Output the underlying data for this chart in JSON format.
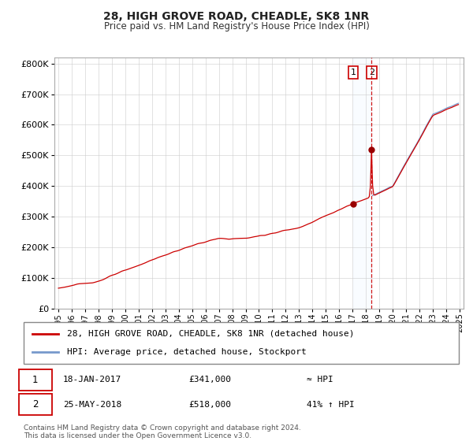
{
  "title": "28, HIGH GROVE ROAD, CHEADLE, SK8 1NR",
  "subtitle": "Price paid vs. HM Land Registry's House Price Index (HPI)",
  "ylim": [
    0,
    820000
  ],
  "yticks": [
    0,
    100000,
    200000,
    300000,
    400000,
    500000,
    600000,
    700000,
    800000
  ],
  "ytick_labels": [
    "£0",
    "£100K",
    "£200K",
    "£300K",
    "£400K",
    "£500K",
    "£600K",
    "£700K",
    "£800K"
  ],
  "line1_color": "#cc0000",
  "line2_color": "#7799cc",
  "marker_color": "#990000",
  "vline_color": "#cc0000",
  "shade_color": "#ddeeff",
  "legend_label1": "28, HIGH GROVE ROAD, CHEADLE, SK8 1NR (detached house)",
  "legend_label2": "HPI: Average price, detached house, Stockport",
  "annotation1_date": "18-JAN-2017",
  "annotation1_price": "£341,000",
  "annotation1_hpi": "≈ HPI",
  "annotation2_date": "25-MAY-2018",
  "annotation2_price": "£518,000",
  "annotation2_hpi": "41% ↑ HPI",
  "footer": "Contains HM Land Registry data © Crown copyright and database right 2024.\nThis data is licensed under the Open Government Licence v3.0.",
  "background_color": "#ffffff",
  "grid_color": "#cccccc",
  "purchase1_year": 2017.05,
  "purchase1_price": 341000,
  "purchase2_year": 2018.42,
  "purchase2_price": 518000
}
